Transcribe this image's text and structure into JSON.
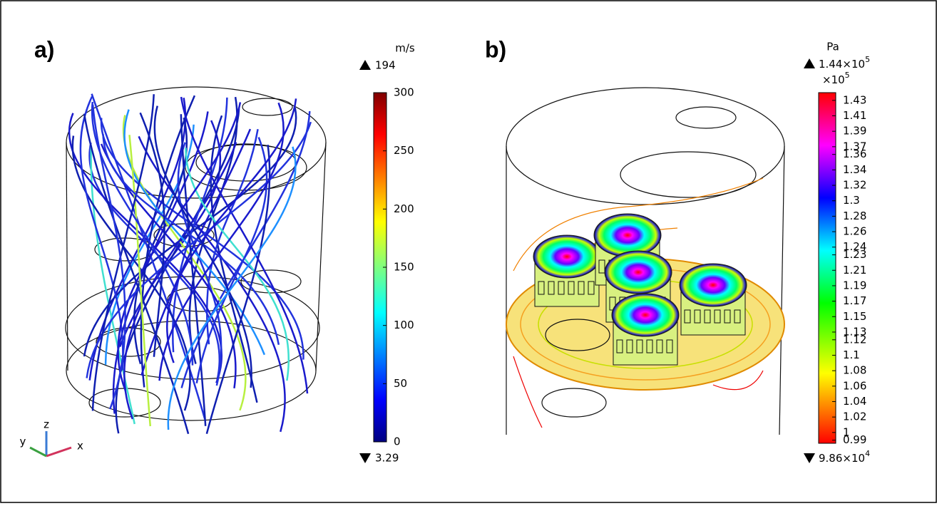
{
  "panels": [
    {
      "label": "a)",
      "colorbar": {
        "unit": "m/s",
        "max_label": "194",
        "min_label": "3.29",
        "range": [
          0,
          300
        ],
        "ticks": [
          0,
          50,
          100,
          150,
          200,
          250,
          300
        ]
      },
      "axes_triad": {
        "z": "z",
        "y": "y",
        "x": "x"
      }
    },
    {
      "label": "b)",
      "colorbar": {
        "unit": "Pa",
        "max_label": {
          "mantissa": "1.44×10",
          "exponent": "5"
        },
        "multiplier": {
          "base": "×10",
          "exponent": "5"
        },
        "min_label": {
          "mantissa": "9.86×10",
          "exponent": "4"
        },
        "range": [
          0.986,
          1.44
        ],
        "ticks": [
          1.43,
          1.41,
          1.39,
          1.37,
          1.36,
          1.34,
          1.32,
          1.3,
          1.28,
          1.26,
          1.24,
          1.23,
          1.21,
          1.19,
          1.17,
          1.15,
          1.13,
          1.12,
          1.1,
          1.08,
          1.06,
          1.04,
          1.02,
          1,
          0.99
        ]
      }
    }
  ]
}
